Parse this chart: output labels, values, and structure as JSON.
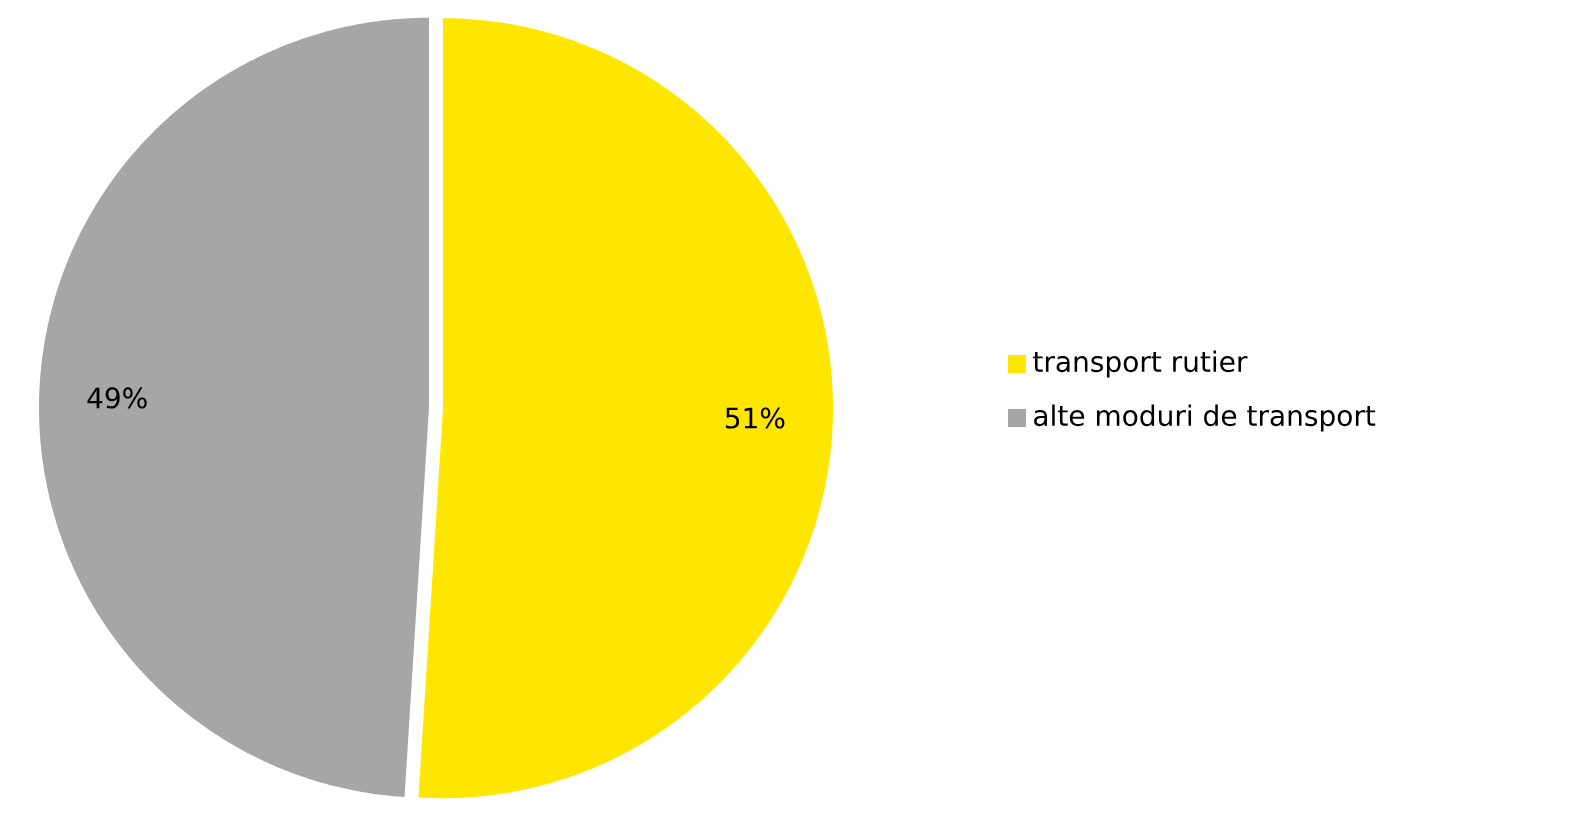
{
  "chart_data": {
    "type": "pie",
    "categories": [
      "transport rutier",
      "alte moduri de transport"
    ],
    "values": [
      51,
      49
    ],
    "colors": [
      "#ffe600",
      "#a6a6a6"
    ],
    "value_labels": [
      "51%",
      "49%"
    ],
    "legend": "right"
  }
}
